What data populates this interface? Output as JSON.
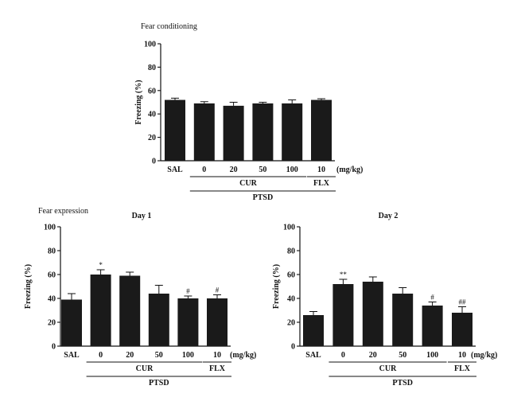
{
  "section_labels": {
    "fear_conditioning": "Fear conditioning",
    "fear_expression": "Fear expression"
  },
  "colors": {
    "bar": "#1a1a1a",
    "axis": "#111111"
  },
  "chart_data": [
    {
      "id": "fear_conditioning",
      "type": "bar",
      "title": "",
      "ylabel": "Freezing (%)",
      "ylim": [
        0,
        100
      ],
      "yticks": [
        0,
        20,
        40,
        60,
        80,
        100
      ],
      "categories": [
        "SAL",
        "0",
        "20",
        "50",
        "100",
        "10"
      ],
      "unit_label": "(mg/kg)",
      "values": [
        52,
        49,
        47,
        49,
        49,
        52
      ],
      "errors": [
        1.5,
        1.5,
        3,
        1,
        3,
        1
      ],
      "annotations": [
        "",
        "",
        "",
        "",
        "",
        ""
      ],
      "groups": [
        {
          "label": "CUR",
          "from": 1,
          "to": 4
        },
        {
          "label": "FLX",
          "from": 5,
          "to": 5
        },
        {
          "label": "PTSD",
          "from": 1,
          "to": 5
        }
      ]
    },
    {
      "id": "day1",
      "type": "bar",
      "title": "Day 1",
      "ylabel": "Freezing (%)",
      "ylim": [
        0,
        100
      ],
      "yticks": [
        0,
        20,
        40,
        60,
        80,
        100
      ],
      "categories": [
        "SAL",
        "0",
        "20",
        "50",
        "100",
        "10"
      ],
      "unit_label": "(mg/kg)",
      "values": [
        39,
        60,
        59,
        44,
        40,
        40
      ],
      "errors": [
        5,
        4,
        3,
        7,
        2,
        3
      ],
      "annotations": [
        "",
        "*",
        "",
        "",
        "#",
        "#"
      ],
      "groups": [
        {
          "label": "CUR",
          "from": 1,
          "to": 4
        },
        {
          "label": "FLX",
          "from": 5,
          "to": 5
        },
        {
          "label": "PTSD",
          "from": 1,
          "to": 5
        }
      ]
    },
    {
      "id": "day2",
      "type": "bar",
      "title": "Day 2",
      "ylabel": "Freezing (%)",
      "ylim": [
        0,
        100
      ],
      "yticks": [
        0,
        20,
        40,
        60,
        80,
        100
      ],
      "categories": [
        "SAL",
        "0",
        "20",
        "50",
        "100",
        "10"
      ],
      "unit_label": "(mg/kg)",
      "values": [
        26,
        52,
        54,
        44,
        34,
        28
      ],
      "errors": [
        3,
        4,
        4,
        5,
        3,
        5
      ],
      "annotations": [
        "",
        "**",
        "",
        "",
        "#",
        "##"
      ],
      "groups": [
        {
          "label": "CUR",
          "from": 1,
          "to": 4
        },
        {
          "label": "FLX",
          "from": 5,
          "to": 5
        },
        {
          "label": "PTSD",
          "from": 1,
          "to": 5
        }
      ]
    }
  ]
}
